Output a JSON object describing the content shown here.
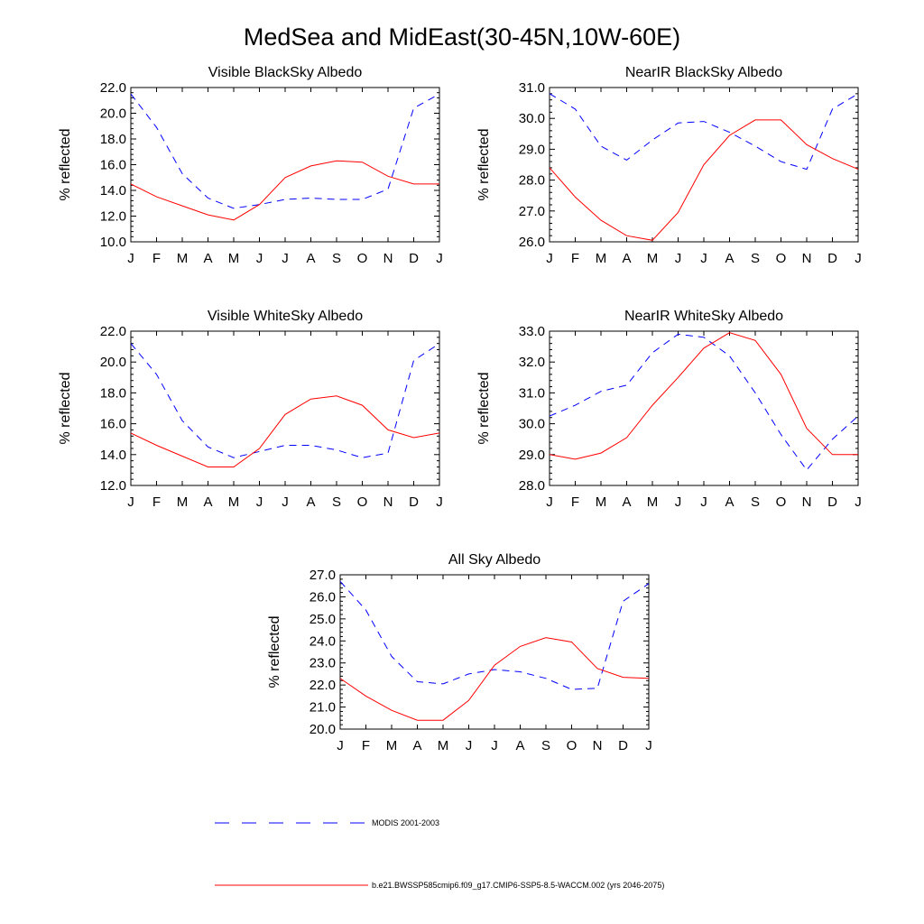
{
  "title": "MedSea and MidEast(30-45N,10W-60E)",
  "chart_data": [
    {
      "type": "line",
      "title": "Visible BlackSky Albedo",
      "ylabel": "% reflected",
      "categories": [
        "J",
        "F",
        "M",
        "A",
        "M",
        "J",
        "J",
        "A",
        "S",
        "O",
        "N",
        "D",
        "J"
      ],
      "ylim": [
        10.0,
        22.0
      ],
      "yticks": [
        "10.0",
        "12.0",
        "14.0",
        "16.0",
        "18.0",
        "20.0",
        "22.0"
      ],
      "series": [
        {
          "name": "MODIS 2001-2003",
          "values": [
            21.5,
            18.9,
            15.3,
            13.4,
            12.6,
            12.9,
            13.3,
            13.4,
            13.3,
            13.3,
            14.1,
            20.4,
            21.5
          ]
        },
        {
          "name": "b.e21.BWSSP585cmip6.f09_g17.CMIP6-SSP5-8.5-WACCM.002 (yrs 2046-2075)",
          "values": [
            14.5,
            13.5,
            12.8,
            12.1,
            11.7,
            12.9,
            15.0,
            15.9,
            16.3,
            16.2,
            15.1,
            14.5,
            14.5
          ]
        }
      ]
    },
    {
      "type": "line",
      "title": "NearIR BlackSky Albedo",
      "ylabel": "% reflected",
      "categories": [
        "J",
        "F",
        "M",
        "A",
        "M",
        "J",
        "J",
        "A",
        "S",
        "O",
        "N",
        "D",
        "J"
      ],
      "ylim": [
        26.0,
        31.0
      ],
      "yticks": [
        "26.0",
        "27.0",
        "28.0",
        "29.0",
        "30.0",
        "31.0"
      ],
      "series": [
        {
          "name": "MODIS 2001-2003",
          "values": [
            30.8,
            30.3,
            29.1,
            28.65,
            29.3,
            29.85,
            29.9,
            29.55,
            29.1,
            28.6,
            28.35,
            30.3,
            30.8
          ]
        },
        {
          "name": "b.e21.BWSSP585cmip6.f09_g17.CMIP6-SSP5-8.5-WACCM.002 (yrs 2046-2075)",
          "values": [
            28.4,
            27.45,
            26.7,
            26.2,
            26.05,
            26.95,
            28.5,
            29.45,
            29.95,
            29.95,
            29.15,
            28.7,
            28.35
          ]
        }
      ]
    },
    {
      "type": "line",
      "title": "Visible WhiteSky Albedo",
      "ylabel": "% reflected",
      "categories": [
        "J",
        "F",
        "M",
        "A",
        "M",
        "J",
        "J",
        "A",
        "S",
        "O",
        "N",
        "D",
        "J"
      ],
      "ylim": [
        12.0,
        22.0
      ],
      "yticks": [
        "12.0",
        "14.0",
        "16.0",
        "18.0",
        "20.0",
        "22.0"
      ],
      "series": [
        {
          "name": "MODIS 2001-2003",
          "values": [
            21.2,
            19.2,
            16.2,
            14.5,
            13.8,
            14.2,
            14.6,
            14.6,
            14.3,
            13.8,
            14.1,
            20.1,
            21.2
          ]
        },
        {
          "name": "b.e21.BWSSP585cmip6.f09_g17.CMIP6-SSP5-8.5-WACCM.002 (yrs 2046-2075)",
          "values": [
            15.4,
            14.6,
            13.9,
            13.2,
            13.2,
            14.4,
            16.6,
            17.6,
            17.8,
            17.2,
            15.6,
            15.1,
            15.4
          ]
        }
      ]
    },
    {
      "type": "line",
      "title": "NearIR WhiteSky Albedo",
      "ylabel": "% reflected",
      "categories": [
        "J",
        "F",
        "M",
        "A",
        "M",
        "J",
        "J",
        "A",
        "S",
        "O",
        "N",
        "D",
        "J"
      ],
      "ylim": [
        28.0,
        33.0
      ],
      "yticks": [
        "28.0",
        "29.0",
        "30.0",
        "31.0",
        "32.0",
        "33.0"
      ],
      "series": [
        {
          "name": "MODIS 2001-2003",
          "values": [
            30.25,
            30.6,
            31.05,
            31.25,
            32.3,
            32.9,
            32.8,
            32.2,
            31.0,
            29.65,
            28.5,
            29.5,
            30.25
          ]
        },
        {
          "name": "b.e21.BWSSP585cmip6.f09_g17.CMIP6-SSP5-8.5-WACCM.002 (yrs 2046-2075)",
          "values": [
            29.0,
            28.85,
            29.05,
            29.55,
            30.6,
            31.5,
            32.45,
            32.95,
            32.7,
            31.6,
            29.85,
            29.0,
            29.0
          ]
        }
      ]
    },
    {
      "type": "line",
      "title": "All Sky Albedo",
      "ylabel": "% reflected",
      "categories": [
        "J",
        "F",
        "M",
        "A",
        "M",
        "J",
        "J",
        "A",
        "S",
        "O",
        "N",
        "D",
        "J"
      ],
      "ylim": [
        20.0,
        27.0
      ],
      "yticks": [
        "20.0",
        "21.0",
        "22.0",
        "23.0",
        "24.0",
        "25.0",
        "26.0",
        "27.0"
      ],
      "series": [
        {
          "name": "MODIS 2001-2003",
          "values": [
            26.7,
            25.4,
            23.3,
            22.15,
            22.05,
            22.5,
            22.7,
            22.6,
            22.3,
            21.8,
            21.85,
            25.8,
            26.6
          ]
        },
        {
          "name": "b.e21.BWSSP585cmip6.f09_g17.CMIP6-SSP5-8.5-WACCM.002 (yrs 2046-2075)",
          "values": [
            22.3,
            21.5,
            20.85,
            20.4,
            20.4,
            21.3,
            22.9,
            23.75,
            24.15,
            23.95,
            22.75,
            22.35,
            22.3
          ]
        }
      ]
    }
  ],
  "legend": [
    {
      "label": "MODIS 2001-2003",
      "color": "#0000ff",
      "style": "dashed"
    },
    {
      "label": "b.e21.BWSSP585cmip6.f09_g17.CMIP6-SSP5-8.5-WACCM.002 (yrs 2046-2075)",
      "color": "#ff0000",
      "style": "solid"
    }
  ]
}
